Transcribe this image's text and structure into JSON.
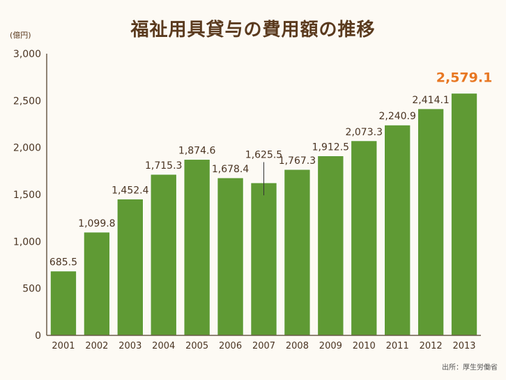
{
  "chart_data": {
    "type": "bar",
    "title": "福祉用具貸与の費用額の推移",
    "unit_label": "(億円)",
    "source": "出所：厚生労働省",
    "categories": [
      "2001",
      "2002",
      "2003",
      "2004",
      "2005",
      "2006",
      "2007",
      "2008",
      "2009",
      "2010",
      "2011",
      "2012",
      "2013"
    ],
    "values": [
      685.5,
      1099.8,
      1452.4,
      1715.3,
      1874.6,
      1678.4,
      1625.5,
      1767.3,
      1912.5,
      2073.3,
      2240.9,
      2414.1,
      2579.1
    ],
    "value_labels": [
      "685.5",
      "1,099.8",
      "1,452.4",
      "1,715.3",
      "1,874.6",
      "1,678.4",
      "1,625.5",
      "1,767.3",
      "1,912.5",
      "2,073.3",
      "2,240.9",
      "2,414.1",
      "2,579.1"
    ],
    "highlight_index": 12,
    "ylim": [
      0,
      3000
    ],
    "yticks": [
      0,
      500,
      1000,
      1500,
      2000,
      2500,
      3000
    ],
    "ytick_labels": [
      "0",
      "500",
      "1,000",
      "1,500",
      "2,000",
      "2,500",
      "3,000"
    ],
    "xlabel": "",
    "ylabel": "",
    "grid": false,
    "colors": {
      "bar": "#5f9a34",
      "bar_edge": "#ffffff",
      "highlight_label": "#e87722",
      "text": "#4a3422",
      "axis": "#6b5a4a"
    }
  }
}
